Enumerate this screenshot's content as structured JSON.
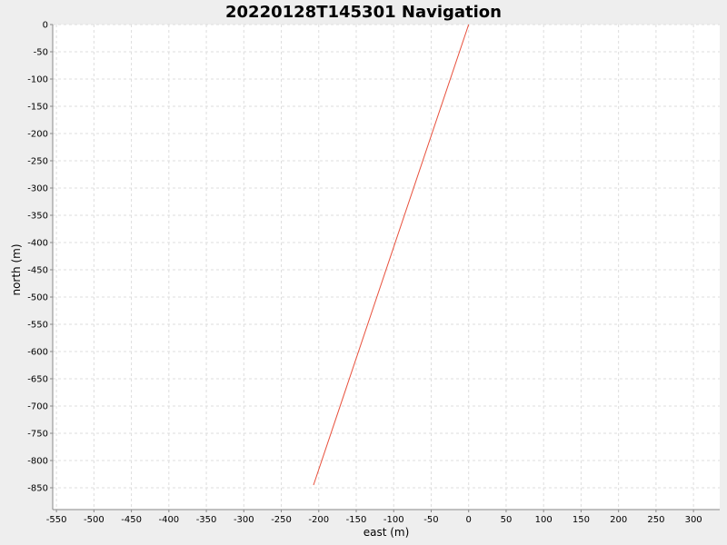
{
  "chart_data": {
    "type": "line",
    "title": "20220128T145301 Navigation",
    "xlabel": "east (m)",
    "ylabel": "north (m)",
    "xlim": [
      -555,
      335
    ],
    "ylim": [
      -890,
      0
    ],
    "x_ticks": [
      -550,
      -500,
      -450,
      -400,
      -350,
      -300,
      -250,
      -200,
      -150,
      -100,
      -50,
      0,
      50,
      100,
      150,
      200,
      250,
      300
    ],
    "y_ticks": [
      0,
      -50,
      -100,
      -150,
      -200,
      -250,
      -300,
      -350,
      -400,
      -450,
      -500,
      -550,
      -600,
      -650,
      -700,
      -750,
      -800,
      -850
    ],
    "grid": true,
    "series": [
      {
        "color": "#e8503c",
        "x": [
          0,
          -207
        ],
        "y": [
          0,
          -845
        ]
      }
    ]
  },
  "colors": {
    "page_background": "#eeeeee",
    "plot_background": "#ffffff",
    "grid": "#dddddd",
    "axis": "#888888"
  }
}
